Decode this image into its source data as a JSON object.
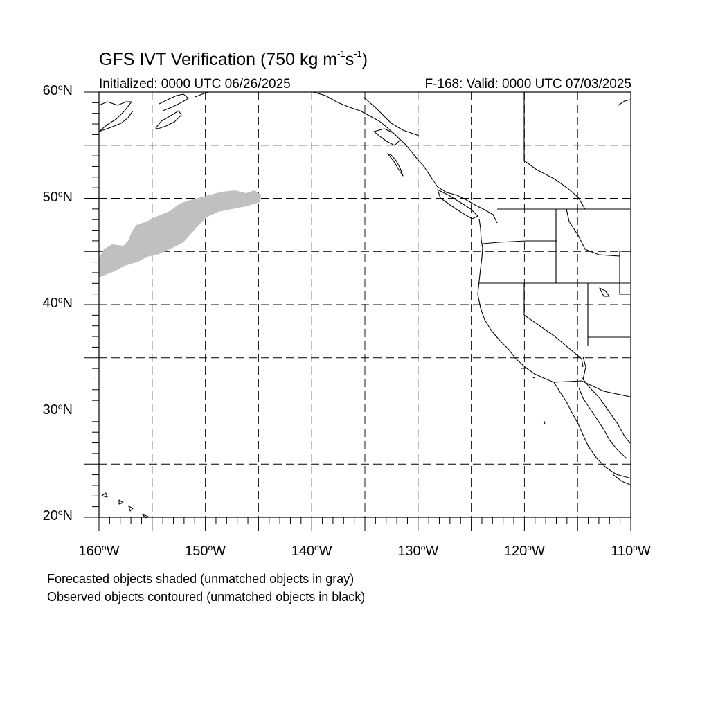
{
  "title": {
    "main": "GFS IVT Verification (750 kg m",
    "exp1": "-1",
    "mid": "s",
    "exp2": "-1",
    "end": ")"
  },
  "subtitle": {
    "initialized": "Initialized: 0000 UTC 06/26/2025",
    "valid": "F-168: Valid: 0000 UTC 07/03/2025"
  },
  "map": {
    "lon_range": [
      -160,
      -110
    ],
    "lat_range": [
      20,
      60
    ],
    "grid_interval_deg": 5,
    "grid_style": "dashed",
    "lat_labels": [
      {
        "num": "60",
        "deg": "o",
        "hem": "N"
      },
      {
        "num": "50",
        "deg": "o",
        "hem": "N"
      },
      {
        "num": "40",
        "deg": "o",
        "hem": "N"
      },
      {
        "num": "30",
        "deg": "o",
        "hem": "N"
      },
      {
        "num": "20",
        "deg": "o",
        "hem": "N"
      }
    ],
    "lon_labels": [
      {
        "num": "160",
        "deg": "o",
        "hem": "W"
      },
      {
        "num": "150",
        "deg": "o",
        "hem": "W"
      },
      {
        "num": "140",
        "deg": "o",
        "hem": "W"
      },
      {
        "num": "130",
        "deg": "o",
        "hem": "W"
      },
      {
        "num": "120",
        "deg": "o",
        "hem": "W"
      },
      {
        "num": "110",
        "deg": "o",
        "hem": "W"
      }
    ],
    "forecast_object_color": "#c0c0c0",
    "forecast_object_status": "unmatched"
  },
  "footnotes": [
    "Forecasted objects shaded (unmatched objects in gray)",
    "Observed objects contoured (unmatched objects in black)"
  ]
}
